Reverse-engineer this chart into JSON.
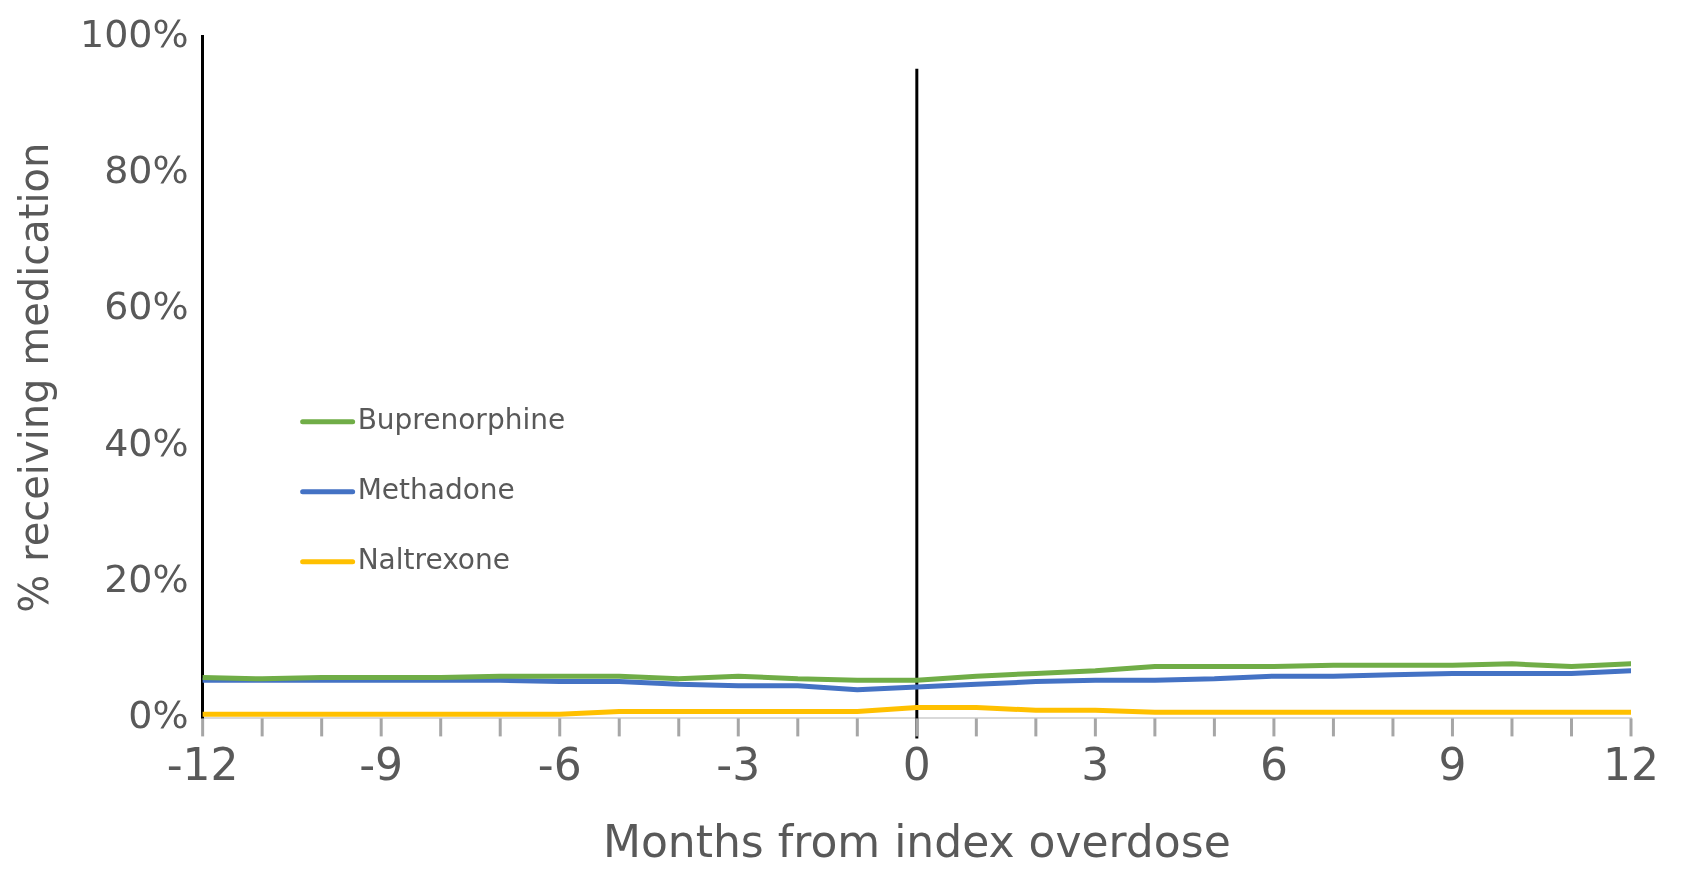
{
  "chart_data": {
    "type": "line",
    "xlabel": "Months from index overdose",
    "ylabel": "% receiving medication",
    "x": [
      -12,
      -11,
      -10,
      -9,
      -8,
      -7,
      -6,
      -5,
      -4,
      -3,
      -2,
      -1,
      0,
      1,
      2,
      3,
      4,
      5,
      6,
      7,
      8,
      9,
      10,
      11,
      12
    ],
    "series": [
      {
        "name": "Buprenorphine",
        "color": "#70ad47",
        "values": [
          6.0,
          5.8,
          6.0,
          6.0,
          6.0,
          6.2,
          6.2,
          6.2,
          5.8,
          6.2,
          5.8,
          5.6,
          5.6,
          6.2,
          6.6,
          7.0,
          7.6,
          7.6,
          7.6,
          7.8,
          7.8,
          7.8,
          8.0,
          7.6,
          8.0
        ]
      },
      {
        "name": "Methadone",
        "color": "#4472c4",
        "values": [
          5.6,
          5.6,
          5.6,
          5.6,
          5.6,
          5.6,
          5.4,
          5.4,
          5.0,
          4.8,
          4.8,
          4.2,
          4.6,
          5.0,
          5.4,
          5.6,
          5.6,
          5.8,
          6.2,
          6.2,
          6.4,
          6.6,
          6.6,
          6.6,
          7.0
        ]
      },
      {
        "name": "Naltrexone",
        "color": "#ffc000",
        "values": [
          0.6,
          0.6,
          0.6,
          0.6,
          0.6,
          0.6,
          0.6,
          1.0,
          1.0,
          1.0,
          1.0,
          1.0,
          1.6,
          1.6,
          1.2,
          1.2,
          0.9,
          0.9,
          0.9,
          0.9,
          0.9,
          0.9,
          0.9,
          0.9,
          0.9
        ]
      }
    ],
    "xlim": [
      -12,
      12
    ],
    "xticks": [
      -12,
      -9,
      -6,
      -3,
      0,
      3,
      6,
      9,
      12
    ],
    "ylim": [
      0,
      100
    ],
    "yticks": [
      {
        "value": 0,
        "label": "0%"
      },
      {
        "value": 20,
        "label": "20%"
      },
      {
        "value": 40,
        "label": "40%"
      },
      {
        "value": 60,
        "label": "60%"
      },
      {
        "value": 80,
        "label": "80%"
      },
      {
        "value": 100,
        "label": "100%"
      }
    ],
    "ref_lines": [
      {
        "axis": "x",
        "value": 0,
        "color": "#000000"
      }
    ],
    "grid": false,
    "legend": "left",
    "marker": "none",
    "line_style": "solid"
  }
}
